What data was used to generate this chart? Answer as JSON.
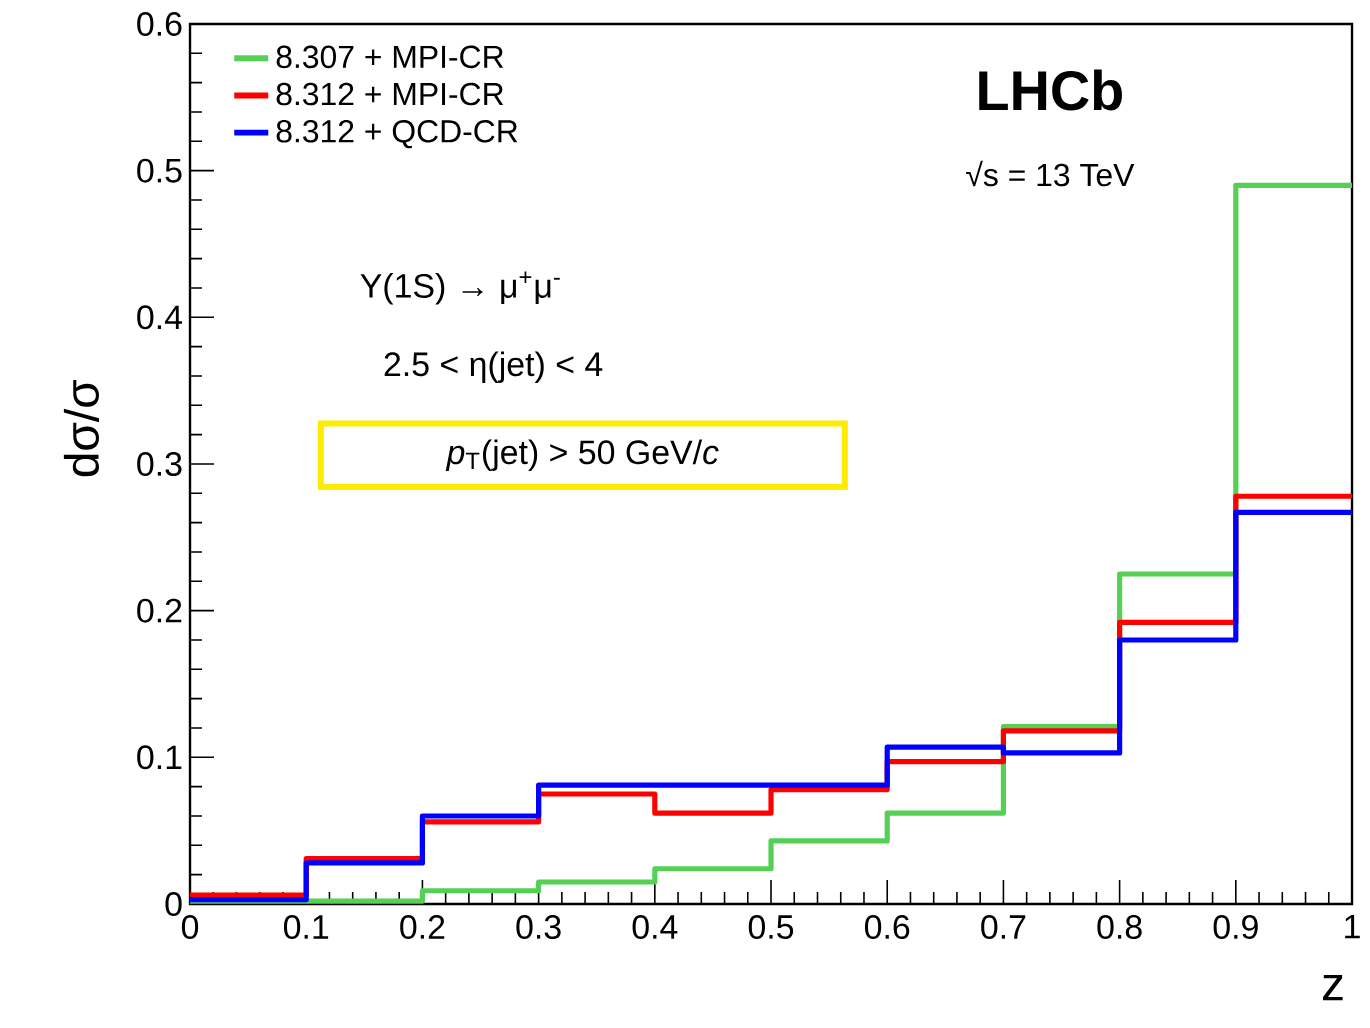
{
  "chart_data": {
    "type": "histogram",
    "xlabel": "z",
    "ylabel": "dσ/σ",
    "bins": [
      0,
      0.1,
      0.2,
      0.3,
      0.4,
      0.5,
      0.6,
      0.7,
      0.8,
      0.9,
      1
    ],
    "series": [
      {
        "name": "8.307 + MPI-CR",
        "color": "#55d055",
        "values": [
          0.002,
          0.002,
          0.009,
          0.015,
          0.024,
          0.043,
          0.062,
          0.121,
          0.225,
          0.49
        ]
      },
      {
        "name": "8.312 + MPI-CR",
        "color": "#ff0000",
        "values": [
          0.006,
          0.031,
          0.056,
          0.075,
          0.062,
          0.078,
          0.097,
          0.118,
          0.192,
          0.278
        ]
      },
      {
        "name": "8.312 + QCD-CR",
        "color": "#0000ff",
        "values": [
          0.003,
          0.028,
          0.06,
          0.081,
          0.081,
          0.081,
          0.107,
          0.103,
          0.18,
          0.267
        ]
      }
    ],
    "xlim": [
      0,
      1
    ],
    "ylim": [
      0,
      0.6
    ],
    "xticks": [
      0,
      0.1,
      0.2,
      0.3,
      0.4,
      0.5,
      0.6,
      0.7,
      0.8,
      0.9,
      1
    ],
    "yticks": [
      0,
      0.1,
      0.2,
      0.3,
      0.4,
      0.5,
      0.6
    ],
    "legend": "top left",
    "grid": false,
    "marker": "none",
    "line_style": "solid",
    "annotations": [
      "**LHCb**",
      "√s = 13 TeV",
      "Υ(1S)  →  μ$^{+}$μ$^{-}$",
      "2.5 <  η(jet) < 4",
      "*p*$_{T}$(jet) > 50 GeV/*c*"
    ]
  }
}
